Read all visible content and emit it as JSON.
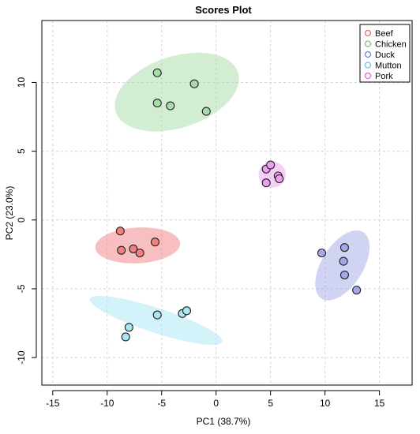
{
  "chart_data": {
    "type": "scatter",
    "title": "Scores Plot",
    "xlabel": "PC1 (38.7%)",
    "ylabel": "PC2 (23.0%)",
    "xlim": [
      -16,
      18
    ],
    "ylim": [
      -12,
      14.5
    ],
    "xticks": [
      -15,
      -10,
      -5,
      0,
      5,
      10,
      15
    ],
    "yticks": [
      -10,
      -5,
      0,
      5,
      10
    ],
    "grid": true,
    "legend_position": "top-right",
    "series": [
      {
        "name": "Beef",
        "color": "#e0736f",
        "fill": "#f08080",
        "points": [
          [
            -8.8,
            -0.8
          ],
          [
            -8.7,
            -2.2
          ],
          [
            -7.6,
            -2.1
          ],
          [
            -7.0,
            -2.4
          ],
          [
            -5.6,
            -1.6
          ]
        ],
        "ellipse": {
          "cx": -7.2,
          "cy": -1.85,
          "rx": 3.9,
          "ry": 1.3,
          "angle": -3
        }
      },
      {
        "name": "Chicken",
        "color": "#7fbf7f",
        "fill": "#a8dca8",
        "points": [
          [
            -5.4,
            10.7
          ],
          [
            -5.4,
            8.5
          ],
          [
            -4.2,
            8.3
          ],
          [
            -2.0,
            9.9
          ],
          [
            -0.9,
            7.9
          ]
        ],
        "ellipse": {
          "cx": -3.6,
          "cy": 9.3,
          "rx": 5.9,
          "ry": 2.6,
          "angle": -18
        }
      },
      {
        "name": "Duck",
        "color": "#7b7fd6",
        "fill": "#a3a8e8",
        "points": [
          [
            9.7,
            -2.4
          ],
          [
            11.7,
            -3.0
          ],
          [
            11.8,
            -2.0
          ],
          [
            11.8,
            -4.0
          ],
          [
            12.9,
            -5.1
          ]
        ],
        "ellipse": {
          "cx": 11.6,
          "cy": -3.3,
          "rx": 3.6,
          "ry": 1.5,
          "angle": -58
        }
      },
      {
        "name": "Mutton",
        "color": "#5fc9e0",
        "fill": "#a8e6f4",
        "points": [
          [
            -8.3,
            -8.5
          ],
          [
            -8.0,
            -7.8
          ],
          [
            -5.4,
            -6.9
          ],
          [
            -3.1,
            -6.8
          ],
          [
            -2.7,
            -6.6
          ]
        ],
        "ellipse": {
          "cx": -5.5,
          "cy": -7.3,
          "rx": 6.4,
          "ry": 0.9,
          "angle": 18
        }
      },
      {
        "name": "Pork",
        "color": "#d966d6",
        "fill": "#ee9ff0",
        "points": [
          [
            4.6,
            3.7
          ],
          [
            5.0,
            4.0
          ],
          [
            4.6,
            2.7
          ],
          [
            5.7,
            3.2
          ],
          [
            5.8,
            3.0
          ]
        ],
        "ellipse": {
          "cx": 5.15,
          "cy": 3.3,
          "rx": 1.25,
          "ry": 0.95,
          "angle": 0
        }
      }
    ]
  }
}
